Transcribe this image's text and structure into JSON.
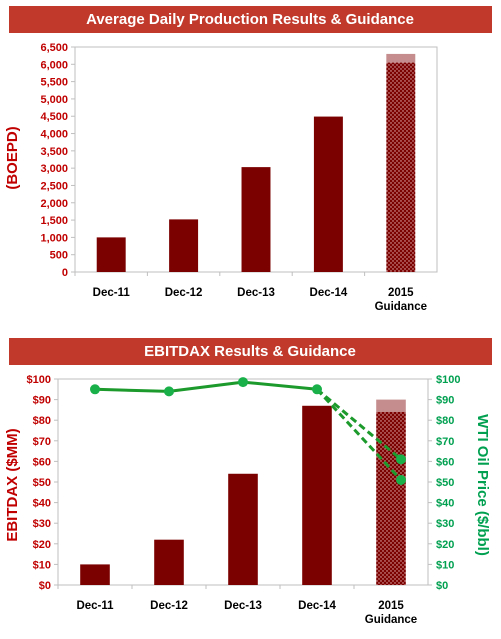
{
  "colors": {
    "banner_bg": "#c0392b",
    "bar": "#7b0000",
    "bar_guidance_top": "#c58d8d",
    "axis_text_red": "#c00000",
    "axis_text_green": "#00a050",
    "line": "#1d9a2c",
    "marker": "#19b04a"
  },
  "chart_data": [
    {
      "type": "bar",
      "title": "Average Daily Production Results & Guidance",
      "ylabel": "(BOEPD)",
      "xlabel": "",
      "ylim": [
        0,
        6500
      ],
      "yticks": [
        "0",
        "500",
        "1,000",
        "1,500",
        "2,000",
        "2,500",
        "3,000",
        "3,500",
        "4,000",
        "4,500",
        "5,000",
        "5,500",
        "6,000",
        "6,500"
      ],
      "categories": [
        "Dec-11",
        "Dec-12",
        "Dec-13",
        "Dec-14",
        "2015 Guidance"
      ],
      "category_lines": [
        [
          "Dec-11"
        ],
        [
          "Dec-12"
        ],
        [
          "Dec-13"
        ],
        [
          "Dec-14"
        ],
        [
          "2015",
          "Guidance"
        ]
      ],
      "values": [
        1000,
        1520,
        3030,
        4490,
        6050
      ],
      "guidance_range": [
        6050,
        6300
      ],
      "grid": false,
      "legend": "none"
    },
    {
      "type": "bar",
      "title": "EBITDAX Results & Guidance",
      "ylabel": "EBITDAX ($MM)",
      "y2label": "WTI Oil Price ($/bbl)",
      "xlabel": "",
      "ylim": [
        0,
        100
      ],
      "y2lim": [
        0,
        100
      ],
      "yticks": [
        "$0",
        "$10",
        "$20",
        "$30",
        "$40",
        "$50",
        "$60",
        "$70",
        "$80",
        "$90",
        "$100"
      ],
      "y2ticks": [
        "$0",
        "$10",
        "$20",
        "$30",
        "$40",
        "$50",
        "$60",
        "$70",
        "$80",
        "$90",
        "$100"
      ],
      "categories": [
        "Dec-11",
        "Dec-12",
        "Dec-13",
        "Dec-14",
        "2015 Guidance"
      ],
      "category_lines": [
        [
          "Dec-11"
        ],
        [
          "Dec-12"
        ],
        [
          "Dec-13"
        ],
        [
          "Dec-14"
        ],
        [
          "2015",
          "Guidance"
        ]
      ],
      "values": [
        10,
        22,
        54,
        87,
        84
      ],
      "guidance_range": [
        84,
        90
      ],
      "oil_price": {
        "values": [
          95,
          94,
          98.5,
          95
        ],
        "guidance_scenarios": [
          51,
          61
        ]
      },
      "grid": false,
      "legend": "none"
    }
  ]
}
